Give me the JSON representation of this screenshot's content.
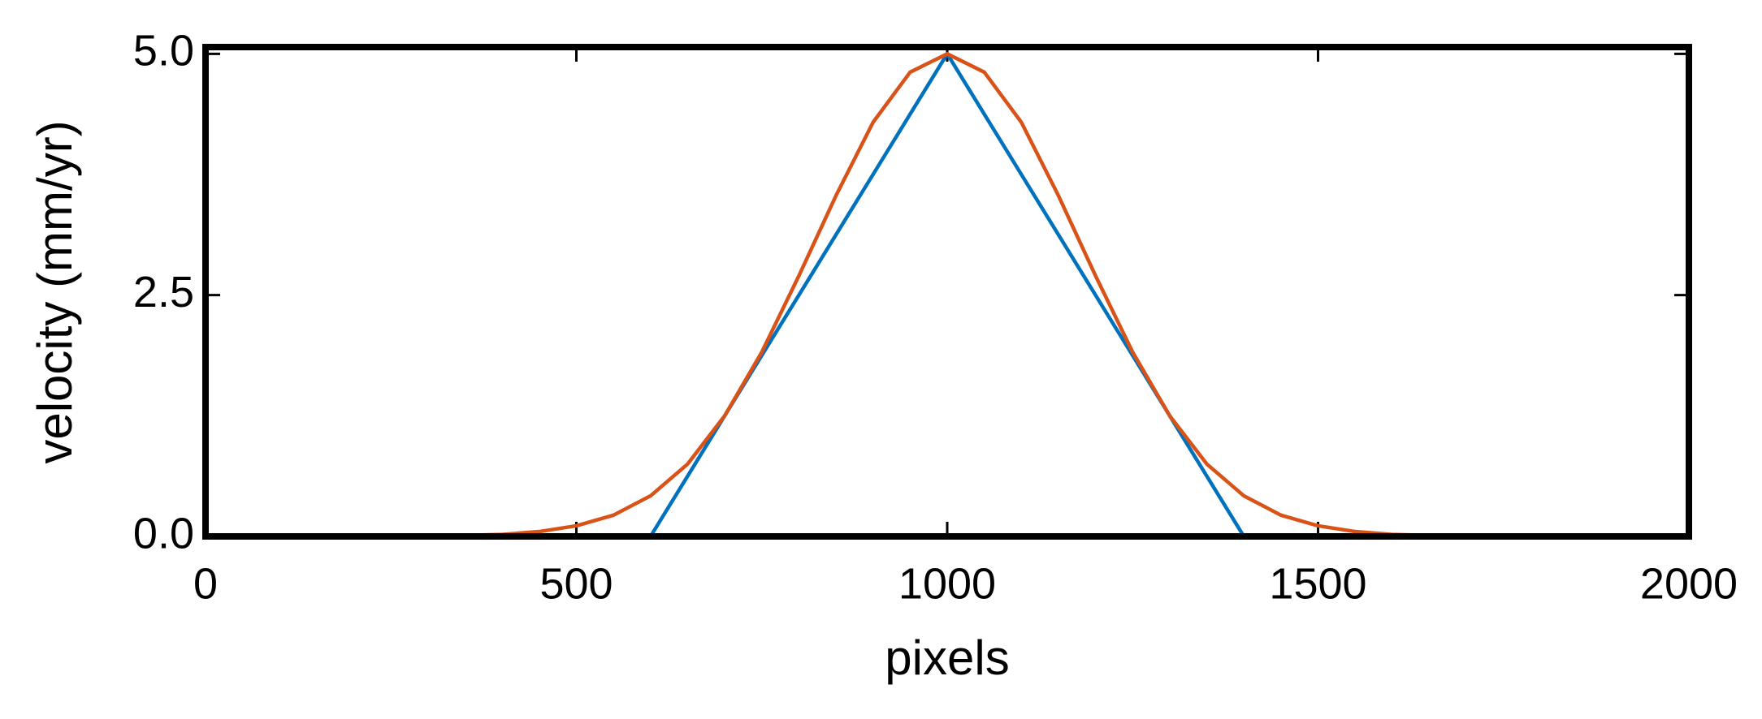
{
  "chart_data": {
    "type": "line",
    "x_label": "pixels",
    "y_label": "velocity (mm/yr)",
    "x": [
      0,
      50,
      100,
      150,
      200,
      250,
      300,
      350,
      400,
      450,
      500,
      550,
      600,
      650,
      700,
      750,
      800,
      850,
      900,
      950,
      1000,
      1050,
      1100,
      1150,
      1200,
      1250,
      1300,
      1350,
      1400,
      1450,
      1500,
      1550,
      1600,
      1650,
      1700,
      1750,
      1800,
      1850,
      1900,
      1950,
      2000
    ],
    "series": [
      {
        "color": "#0072bd",
        "values": [
          0,
          0,
          0,
          0,
          0,
          0,
          0,
          0,
          0,
          0,
          0,
          0,
          0,
          0.625,
          1.25,
          1.875,
          2.5,
          3.125,
          3.75,
          4.375,
          5,
          4.375,
          3.75,
          3.125,
          2.5,
          1.875,
          1.25,
          0.625,
          0,
          0,
          0,
          0,
          0,
          0,
          0,
          0,
          0,
          0,
          0,
          0,
          0
        ]
      },
      {
        "color": "#d95319",
        "values": [
          0,
          0,
          0,
          0,
          0,
          0,
          0,
          0.01,
          0.02,
          0.05,
          0.11,
          0.22,
          0.42,
          0.75,
          1.25,
          1.91,
          2.7,
          3.53,
          4.29,
          4.81,
          5,
          4.81,
          4.29,
          3.53,
          2.7,
          1.91,
          1.25,
          0.75,
          0.42,
          0.22,
          0.11,
          0.05,
          0.02,
          0.01,
          0,
          0,
          0,
          0,
          0,
          0,
          0
        ]
      }
    ],
    "xlim": [
      0,
      2000
    ],
    "ylim": [
      0,
      5.07
    ],
    "xticks": [
      0,
      500,
      1000,
      1500,
      2000
    ],
    "yticks": [
      {
        "value": 0,
        "label": "0.0"
      },
      {
        "value": 2.5,
        "label": "2.5"
      },
      {
        "value": 5,
        "label": "5.0"
      }
    ]
  }
}
